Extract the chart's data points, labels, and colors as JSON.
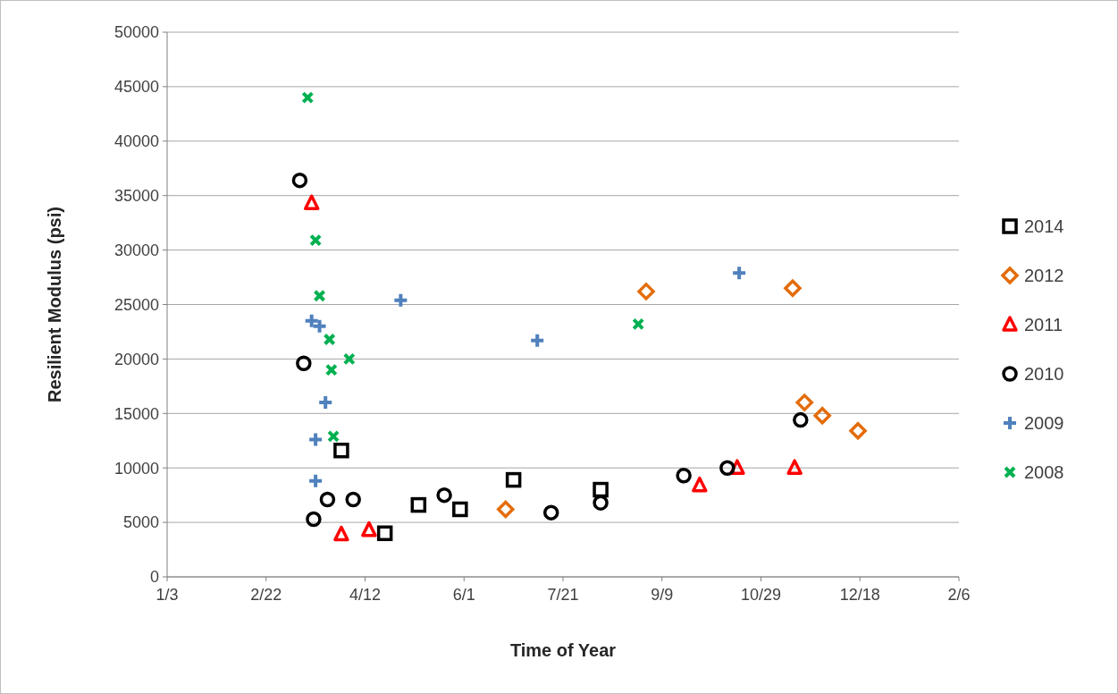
{
  "chart_data": {
    "type": "scatter",
    "xlabel": "Time of Year",
    "ylabel": "Resilient Modulus (psi)",
    "xlim": [
      "2000-01-03",
      "2001-02-06"
    ],
    "xticks": [
      {
        "value": "2000-01-03",
        "label": "1/3"
      },
      {
        "value": "2000-02-22",
        "label": "2/22"
      },
      {
        "value": "2000-04-12",
        "label": "4/12"
      },
      {
        "value": "2000-06-01",
        "label": "6/1"
      },
      {
        "value": "2000-07-21",
        "label": "7/21"
      },
      {
        "value": "2000-09-09",
        "label": "9/9"
      },
      {
        "value": "2000-10-29",
        "label": "10/29"
      },
      {
        "value": "2000-12-18",
        "label": "12/18"
      },
      {
        "value": "2001-02-06",
        "label": "2/6"
      }
    ],
    "ylim": [
      0,
      50000
    ],
    "yticks": [
      0,
      5000,
      10000,
      15000,
      20000,
      25000,
      30000,
      35000,
      40000,
      45000,
      50000
    ],
    "grid": "y",
    "legend": "right",
    "series": [
      {
        "name": "2014",
        "color": "#000000",
        "marker": "square",
        "x": [
          "2000-03-31",
          "2000-04-22",
          "2000-05-09",
          "2000-05-30",
          "2000-06-26",
          "2000-08-09"
        ],
        "values": [
          11600,
          4000,
          6600,
          6200,
          8900,
          8000
        ]
      },
      {
        "name": "2012",
        "color": "#e46c0a",
        "marker": "diamond",
        "x": [
          "2000-06-22",
          "2000-09-01",
          "2000-11-14",
          "2000-11-20",
          "2000-11-29",
          "2000-12-17"
        ],
        "values": [
          6200,
          26200,
          26500,
          16000,
          14800,
          13400
        ]
      },
      {
        "name": "2011",
        "color": "#ff0000",
        "marker": "triangle",
        "x": [
          "2000-03-16",
          "2000-03-31",
          "2000-04-14",
          "2000-09-28",
          "2000-10-17",
          "2000-11-15"
        ],
        "values": [
          34300,
          3900,
          4300,
          8400,
          10000,
          10000
        ]
      },
      {
        "name": "2010",
        "color": "#000000",
        "marker": "circle",
        "x": [
          "2000-03-10",
          "2000-03-12",
          "2000-03-17",
          "2000-03-24",
          "2000-04-06",
          "2000-05-22",
          "2000-07-15",
          "2000-08-09",
          "2000-09-20",
          "2000-10-12",
          "2000-11-18"
        ],
        "values": [
          36400,
          19600,
          5300,
          7100,
          7100,
          7500,
          5900,
          6800,
          9300,
          10000,
          14400
        ]
      },
      {
        "name": "2009",
        "color": "#4f81bd",
        "marker": "cross",
        "x": [
          "2000-03-16",
          "2000-03-20",
          "2000-03-23",
          "2000-03-18",
          "2000-03-18",
          "2000-04-30",
          "2000-07-08",
          "2000-10-18"
        ],
        "values": [
          23500,
          23000,
          16000,
          12600,
          8800,
          25400,
          21700,
          27900
        ]
      },
      {
        "name": "2008",
        "color": "#00b050",
        "marker": "x",
        "x": [
          "2000-03-14",
          "2000-03-18",
          "2000-03-20",
          "2000-03-25",
          "2000-03-26",
          "2000-04-04",
          "2000-03-27",
          "2000-08-28"
        ],
        "values": [
          44000,
          30900,
          25800,
          21800,
          19000,
          20000,
          12900,
          23200
        ]
      }
    ]
  }
}
